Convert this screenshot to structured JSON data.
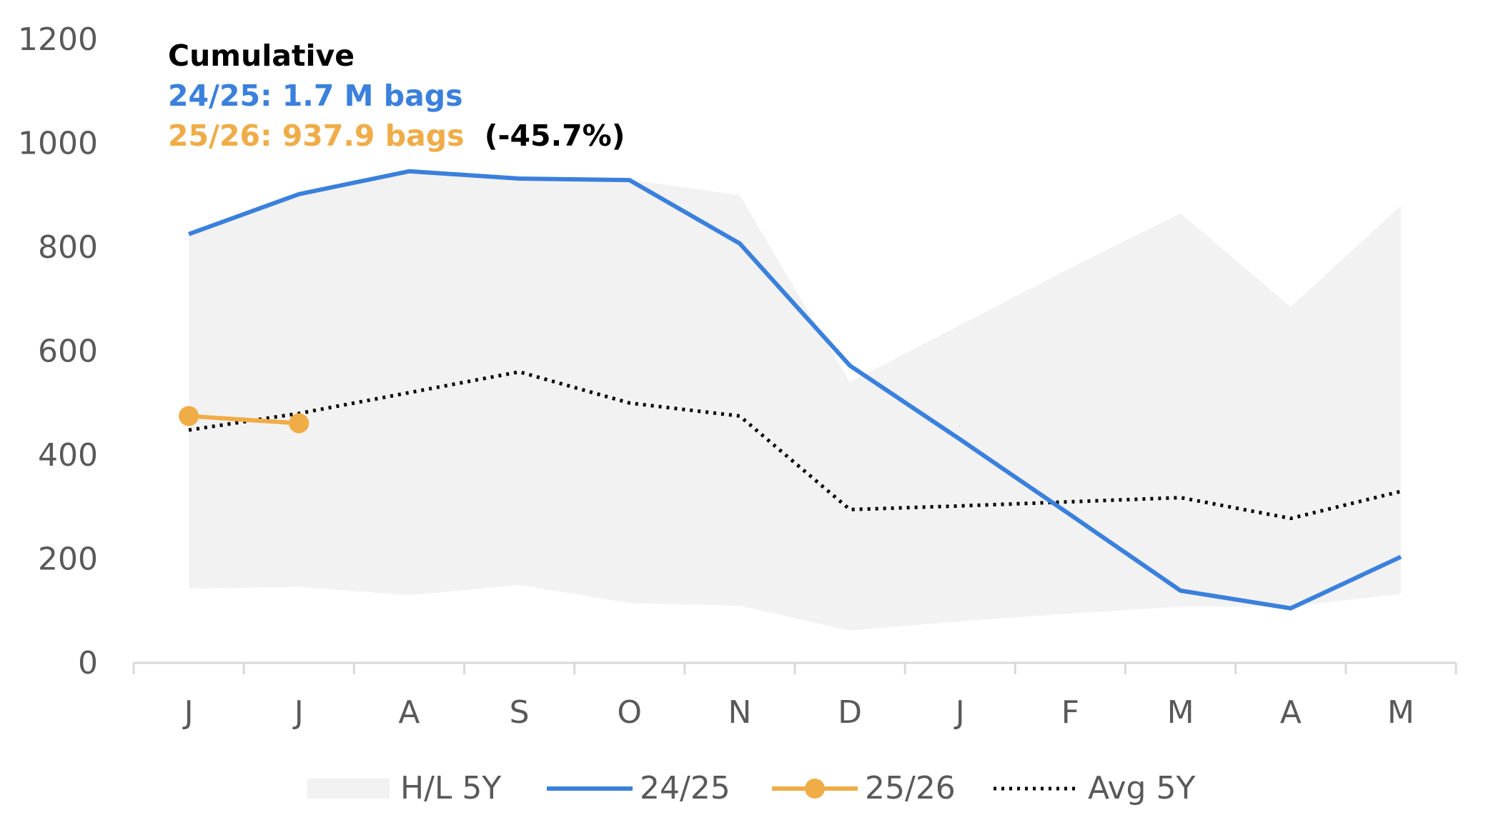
{
  "chart_data": {
    "type": "line",
    "title": "Cumulative",
    "subtitle_lines": [
      {
        "text": "24/25: 1.7 M bags",
        "color": "#3A80DC"
      },
      {
        "text": "25/26: 937.9 bags",
        "color": "#F0AC47",
        "suffix": "(-45.7%)",
        "suffix_color": "#000000"
      }
    ],
    "categories": [
      "J",
      "J",
      "A",
      "S",
      "O",
      "N",
      "D",
      "J",
      "F",
      "M",
      "A",
      "M"
    ],
    "ylim": [
      0,
      1200
    ],
    "yticks": [
      "0",
      "200",
      "400",
      "600",
      "800",
      "1000",
      "1200"
    ],
    "grid": false,
    "legend_position": "bottom",
    "band": {
      "name": "H/L 5Y",
      "color": "#F2F2F2",
      "high": [
        820,
        900,
        945,
        930,
        930,
        900,
        540,
        650,
        760,
        865,
        685,
        880
      ],
      "low": [
        143,
        146,
        130,
        150,
        115,
        110,
        62,
        80,
        95,
        108,
        108,
        133
      ]
    },
    "series": [
      {
        "name": "24/25",
        "color": "#3A80DC",
        "style": "solid",
        "values": [
          825,
          902,
          946,
          932,
          929,
          807,
          572,
          430,
          285,
          139,
          105,
          204
        ]
      },
      {
        "name": "25/26",
        "color": "#F0AC47",
        "style": "solid-markers",
        "values": [
          475,
          461,
          null,
          null,
          null,
          null,
          null,
          null,
          null,
          null,
          null,
          null
        ]
      },
      {
        "name": "Avg 5Y",
        "color": "#000000",
        "style": "dotted",
        "values": [
          448,
          480,
          520,
          560,
          500,
          475,
          295,
          302,
          310,
          318,
          278,
          330
        ]
      }
    ]
  }
}
